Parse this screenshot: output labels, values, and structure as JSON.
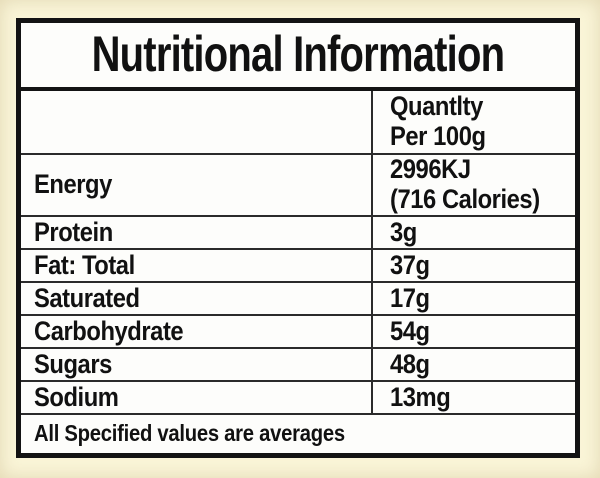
{
  "label": {
    "title": "Nutritional Information",
    "column_header": {
      "line1": "Quantlty",
      "line2": "Per 100g"
    },
    "rows": [
      {
        "name": "Energy",
        "value_lines": [
          "2996KJ",
          "(716 Calories)"
        ]
      },
      {
        "name": "Protein",
        "value": "3g"
      },
      {
        "name": "Fat: Total",
        "value": "37g"
      },
      {
        "name": "Saturated",
        "value": "17g"
      },
      {
        "name": "Carbohydrate",
        "value": "54g"
      },
      {
        "name": "Sugars",
        "value": "48g"
      },
      {
        "name": "Sodium",
        "value": "13mg"
      }
    ],
    "footer": "All Specified values are averages",
    "colors": {
      "page_background": "#faf5d8",
      "panel_background": "#fdfdfb",
      "border": "#131313",
      "grid_line": "#2b2b2b",
      "text": "#111111"
    }
  }
}
